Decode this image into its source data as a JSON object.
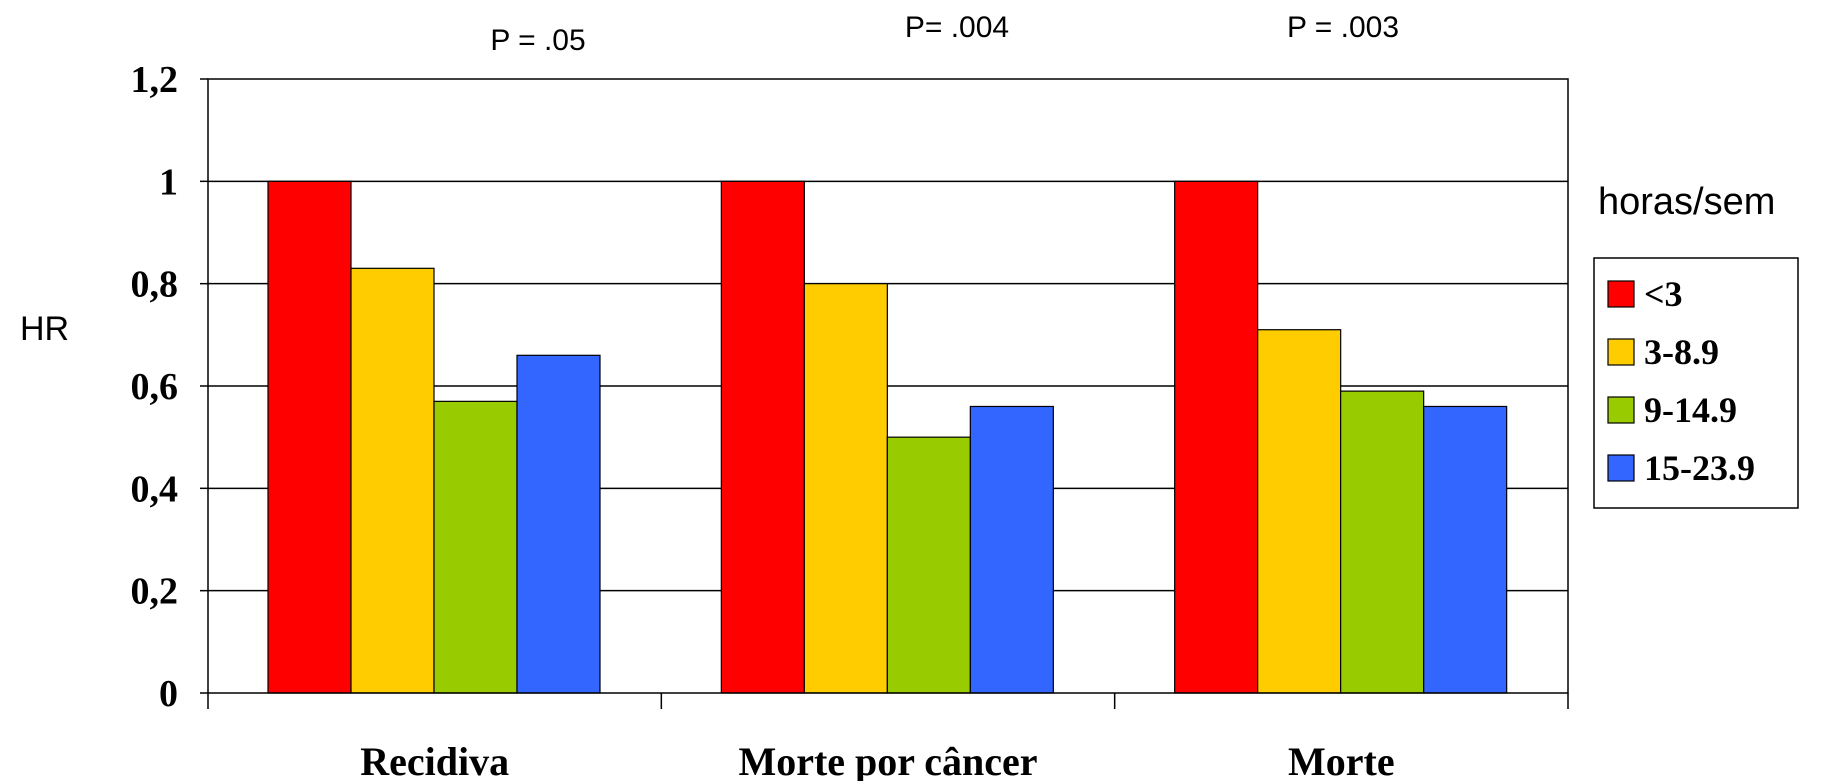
{
  "chart_data": {
    "type": "bar",
    "ylabel": "HR",
    "ylim": [
      0,
      1.2
    ],
    "yticks": [
      "0",
      "0,2",
      "0,4",
      "0,6",
      "0,8",
      "1",
      "1,2"
    ],
    "yticks_values": [
      0,
      0.2,
      0.4,
      0.6,
      0.8,
      1.0,
      1.2
    ],
    "grid": true,
    "categories": [
      "Recidiva",
      "Morte por câncer",
      "Morte"
    ],
    "annotations": [
      "P = .05",
      "P= .004",
      "P = .003"
    ],
    "legend_title": "horas/sem",
    "legend_position": "right",
    "series": [
      {
        "name": "<3",
        "color": "#ff0000",
        "values": [
          1.0,
          1.0,
          1.0
        ]
      },
      {
        "name": "3-8.9",
        "color": "#ffcc00",
        "values": [
          0.83,
          0.8,
          0.71
        ]
      },
      {
        "name": "9-14.9",
        "color": "#99cc00",
        "values": [
          0.57,
          0.5,
          0.59
        ]
      },
      {
        "name": "15-23.9",
        "color": "#3366ff",
        "values": [
          0.66,
          0.56,
          0.56
        ]
      }
    ]
  }
}
